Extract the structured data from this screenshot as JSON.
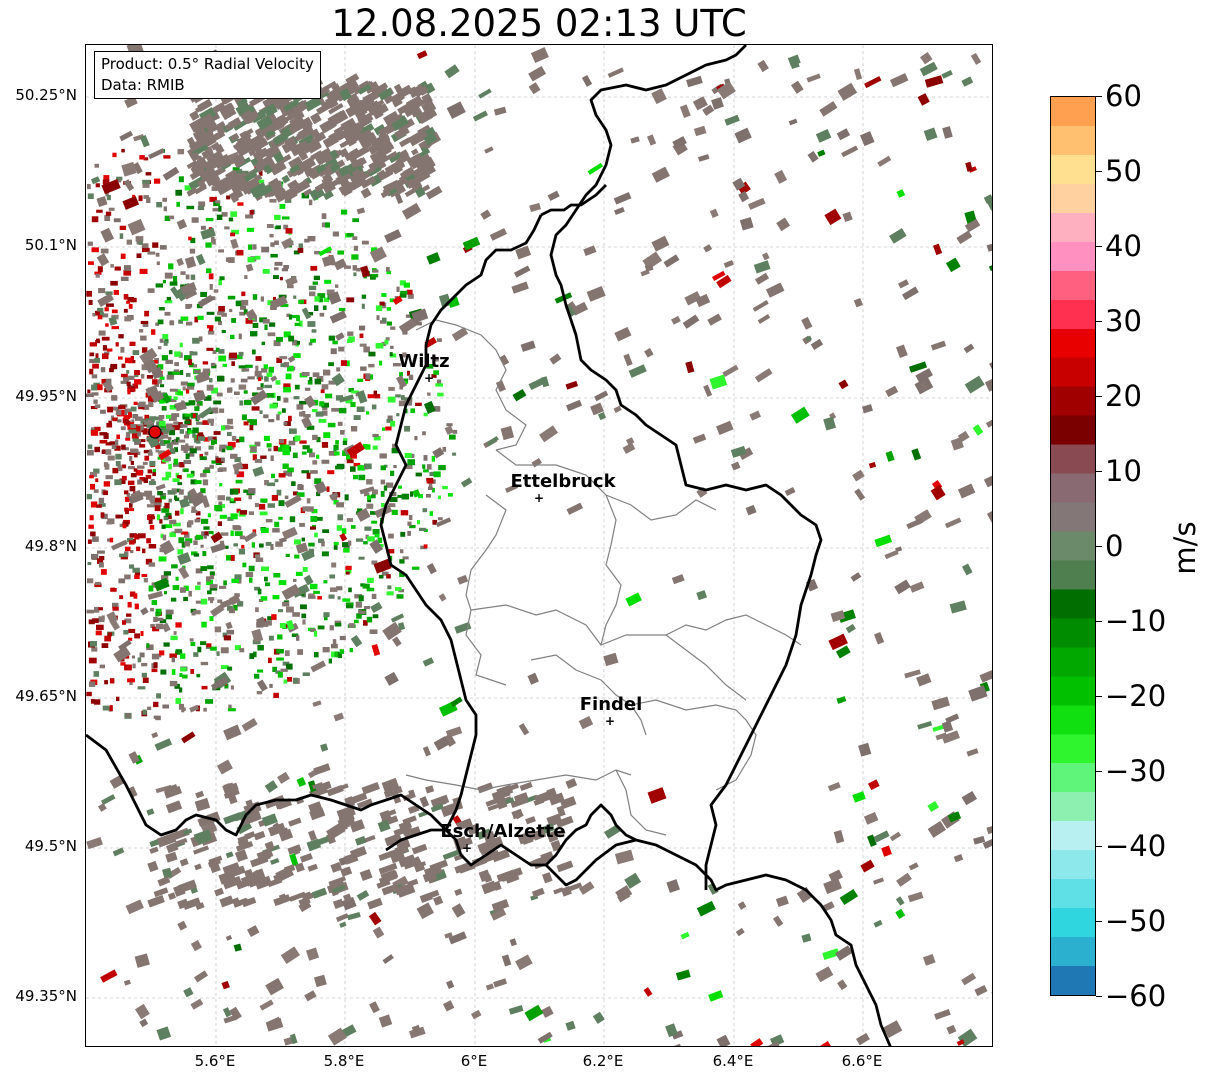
{
  "title": "12.08.2025 02:13 UTC",
  "info_box": {
    "product": "Product: 0.5° Radial Velocity",
    "data": "Data: RMIB"
  },
  "lat_labels": [
    "50.25°N",
    "50.1°N",
    "49.95°N",
    "49.8°N",
    "49.65°N",
    "49.5°N",
    "49.35°N"
  ],
  "lon_labels": [
    "5.6°E",
    "5.8°E",
    "6°E",
    "6.2°E",
    "6.4°E",
    "6.6°E"
  ],
  "cities": [
    {
      "name": "Wiltz",
      "marker": "+"
    },
    {
      "name": "Ettelbruck",
      "marker": "+"
    },
    {
      "name": "Findel",
      "marker": "+"
    },
    {
      "name": "Esch/Alzette",
      "marker": "+"
    }
  ],
  "colorbar": {
    "unit": "m/s",
    "min": -60,
    "max": 60,
    "tick_labels": [
      "60",
      "50",
      "40",
      "30",
      "20",
      "10",
      "0",
      "−10",
      "−20",
      "−30",
      "−40",
      "−50",
      "−60"
    ],
    "colors": [
      "#1f78b4",
      "#2bb0cf",
      "#2fd6df",
      "#5ee0e6",
      "#8ce8ea",
      "#b8eff0",
      "#8ef0b0",
      "#5ef57a",
      "#2ef52e",
      "#10e010",
      "#00c000",
      "#00a800",
      "#008c00",
      "#006e00",
      "#4f7f4f",
      "#6a8a6a",
      "#847777",
      "#8a6a72",
      "#8a4a52",
      "#7a0000",
      "#a00000",
      "#c80000",
      "#e80000",
      "#ff3050",
      "#ff6080",
      "#ff90c0",
      "#ffb0c0",
      "#ffd0a0",
      "#ffe090",
      "#ffc070",
      "#ffa050"
    ],
    "accent_radar": "#dd0000"
  }
}
